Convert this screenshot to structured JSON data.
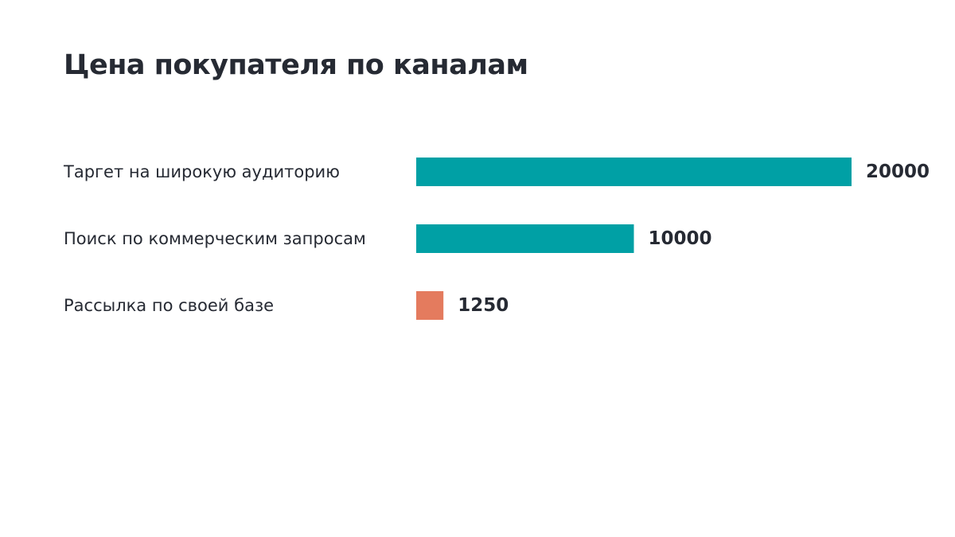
{
  "chart_data": {
    "type": "bar",
    "orientation": "horizontal",
    "title": "Цена покупателя по каналам",
    "categories": [
      "Таргет на широкую аудиторию",
      "Поиск по коммерческим запросам",
      "Рассылка по своей базе"
    ],
    "values": [
      20000,
      10000,
      1250
    ],
    "bar_colors": [
      "#00a0a5",
      "#00a0a5",
      "#e47b5e"
    ],
    "xlim": [
      0,
      20000
    ],
    "grid": false,
    "legend": "none",
    "data_labels": true
  }
}
